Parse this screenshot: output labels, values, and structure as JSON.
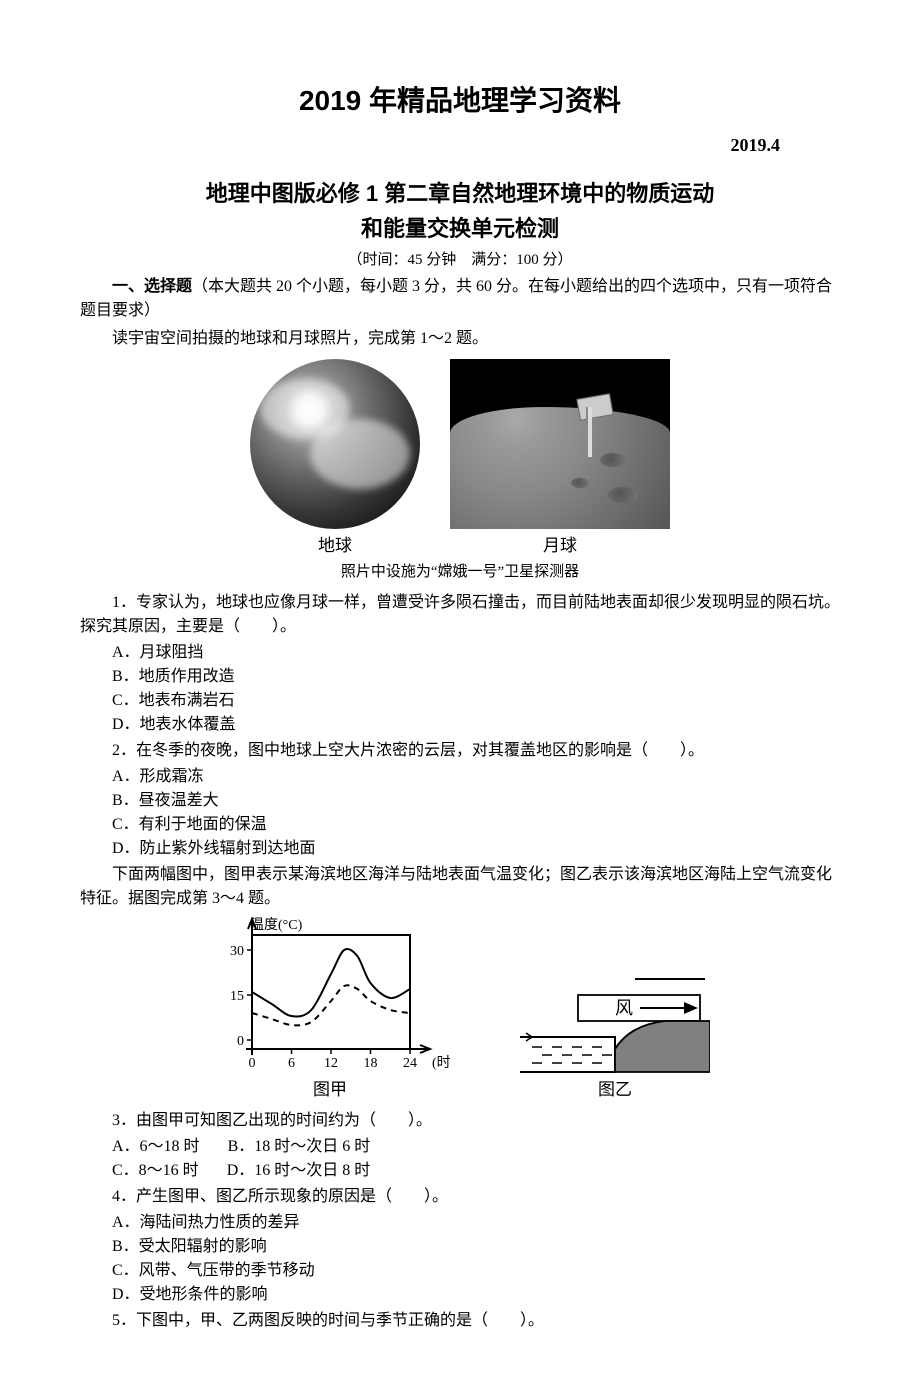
{
  "header": {
    "main_title": "2019 年精品地理学习资料",
    "date": "2019.4",
    "sub_title_l1": "地理中图版必修 1 第二章自然地理环境中的物质运动",
    "sub_title_l2": "和能量交换单元检测",
    "meta": "（时间：45 分钟　满分：100 分）"
  },
  "section1": {
    "label": "一、选择题",
    "desc": "（本大题共 20 个小题，每小题 3 分，共 60 分。在每小题给出的四个选项中，只有一项符合题目要求）",
    "intro_q12": "读宇宙空间拍摄的地球和月球照片，完成第 1～2 题。"
  },
  "images": {
    "earth_label": "地球",
    "moon_label": "月球",
    "caption": "照片中设施为“嫦娥一号”卫星探测器"
  },
  "q1": {
    "stem": "1．专家认为，地球也应像月球一样，曾遭受许多陨石撞击，而目前陆地表面却很少发现明显的陨石坑。探究其原因，主要是（　　）。",
    "A": "A．月球阻挡",
    "B": "B．地质作用改造",
    "C": "C．地表布满岩石",
    "D": "D．地表水体覆盖"
  },
  "q2": {
    "stem": "2．在冬季的夜晚，图中地球上空大片浓密的云层，对其覆盖地区的影响是（　　）。",
    "A": "A．形成霜冻",
    "B": "B．昼夜温差大",
    "C": "C．有利于地面的保温",
    "D": "D．防止紫外线辐射到达地面"
  },
  "intro_q34": "下面两幅图中，图甲表示某海滨地区海洋与陆地表面气温变化；图乙表示该海滨地区海陆上空气流变化特征。据图完成第 3～4 题。",
  "chart_jia": {
    "y_label": "温度(°C)",
    "x_label": "(时)",
    "x_ticks": [
      "0",
      "6",
      "12",
      "18",
      "24"
    ],
    "y_ticks": [
      "0",
      "15",
      "30"
    ],
    "xlim": [
      0,
      24
    ],
    "ylim": [
      -3,
      35
    ],
    "solid_line": [
      [
        0,
        16
      ],
      [
        3,
        12
      ],
      [
        6,
        8
      ],
      [
        9,
        10
      ],
      [
        12,
        22
      ],
      [
        14,
        30
      ],
      [
        16,
        28
      ],
      [
        18,
        19
      ],
      [
        21,
        14
      ],
      [
        24,
        17
      ]
    ],
    "dashed_line": [
      [
        0,
        9
      ],
      [
        3,
        7
      ],
      [
        6,
        5
      ],
      [
        9,
        6
      ],
      [
        12,
        13
      ],
      [
        14,
        18
      ],
      [
        16,
        17
      ],
      [
        18,
        13
      ],
      [
        21,
        10
      ],
      [
        24,
        9
      ]
    ],
    "line_color": "#000000",
    "label": "图甲"
  },
  "chart_yi": {
    "wind_label": "风",
    "land_color": "#808080",
    "label": "图乙"
  },
  "q3": {
    "stem": "3．由图甲可知图乙出现的时间约为（　　）。",
    "A": "A．6～18 时",
    "B": "B．18 时～次日 6 时",
    "C": "C．8～16 时",
    "D": "D．16 时～次日 8 时"
  },
  "q4": {
    "stem": "4．产生图甲、图乙所示现象的原因是（　　）。",
    "A": "A．海陆间热力性质的差异",
    "B": "B．受太阳辐射的影响",
    "C": "C．风带、气压带的季节移动",
    "D": "D．受地形条件的影响"
  },
  "q5": {
    "stem": "5．下图中，甲、乙两图反映的时间与季节正确的是（　　）。"
  }
}
